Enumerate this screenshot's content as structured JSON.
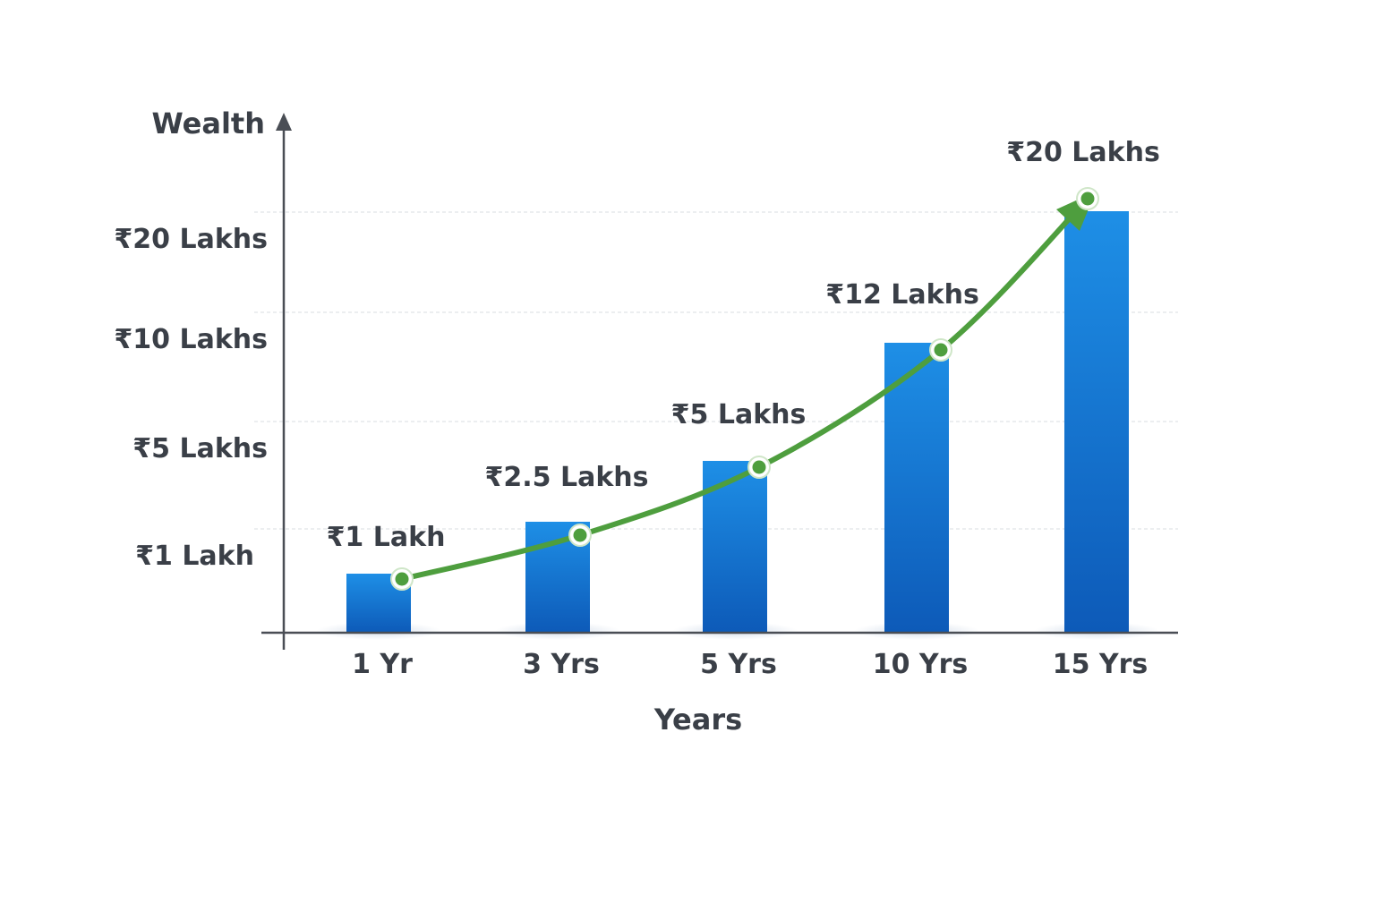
{
  "chart_data": {
    "type": "bar",
    "title": "",
    "xlabel": "Years",
    "ylabel": "Wealth",
    "categories": [
      "1 Yr",
      "3 Yrs",
      "5 Yrs",
      "10 Yrs",
      "15 Yrs"
    ],
    "values": [
      1,
      2.5,
      5,
      12,
      20
    ],
    "value_unit": "Lakhs",
    "data_labels": [
      "₹1 Lakh",
      "₹2.5 Lakhs",
      "₹5 Lakhs",
      "₹12 Lakhs",
      "₹20 Lakhs"
    ],
    "y_ticks": [
      {
        "value": 1,
        "label": "₹1 Lakh"
      },
      {
        "value": 5,
        "label": "₹5 Lakhs"
      },
      {
        "value": 10,
        "label": "₹10 Lakhs"
      },
      {
        "value": 20,
        "label": "₹20 Lakhs"
      }
    ],
    "trend_line": true,
    "grid": true,
    "colors": {
      "bar_top": "#1e8fe6",
      "bar_bottom": "#0d5ab8",
      "trend": "#4e9e3e",
      "axis": "#4a4e55",
      "grid": "#d8dce2",
      "text": "#3a3f47"
    }
  }
}
